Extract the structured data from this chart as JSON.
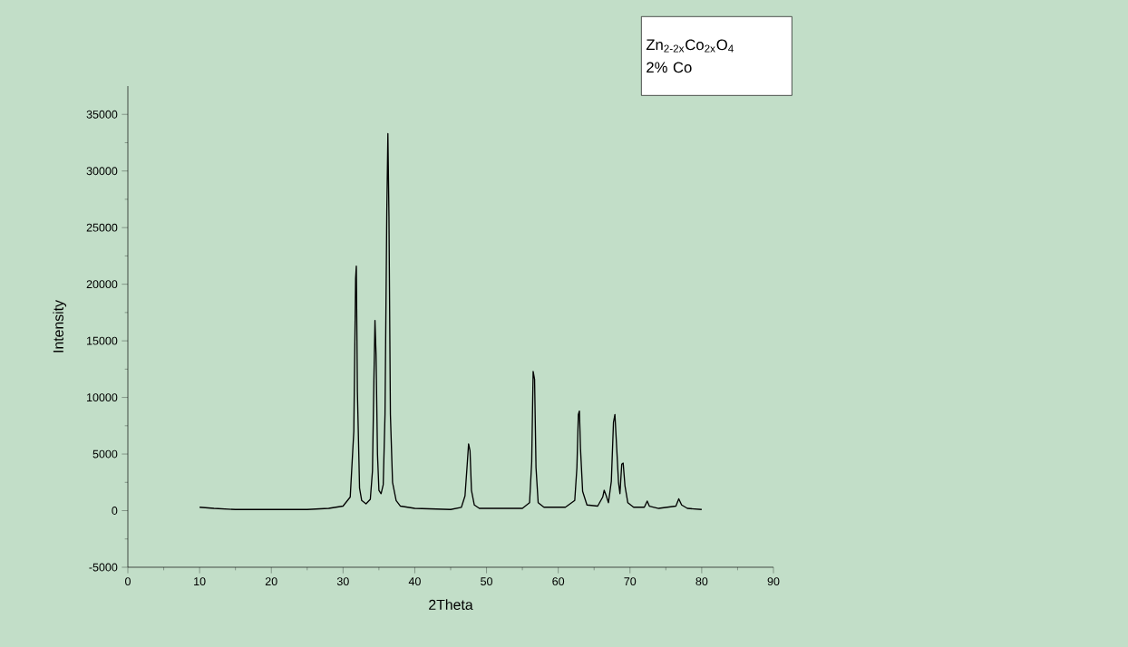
{
  "chart_data": {
    "type": "line",
    "xlabel": "2Theta",
    "ylabel": "Intensity",
    "annotations": [
      "Zn$_{2-2x}$Co$_{2x}$O$_{4}$",
      "2% Co"
    ],
    "xlim": [
      0,
      90
    ],
    "ylim": [
      -5000,
      37500
    ],
    "xticks": [
      0,
      10,
      20,
      30,
      40,
      50,
      60,
      70,
      80,
      90
    ],
    "yticks": [
      -5000,
      0,
      5000,
      10000,
      15000,
      20000,
      25000,
      30000,
      35000
    ],
    "color": "#000000",
    "x": [
      10,
      12,
      15,
      20,
      25,
      28,
      30,
      31,
      31.5,
      31.75,
      31.85,
      32.0,
      32.3,
      32.6,
      33.2,
      33.8,
      34.1,
      34.3,
      34.45,
      34.6,
      34.8,
      35.0,
      35.3,
      35.6,
      35.85,
      36.1,
      36.25,
      36.4,
      36.6,
      36.9,
      37.4,
      38,
      40,
      45,
      46.5,
      47.0,
      47.3,
      47.5,
      47.7,
      47.9,
      48.3,
      49,
      55,
      56.0,
      56.3,
      56.5,
      56.7,
      56.9,
      57.2,
      58,
      61,
      62.3,
      62.6,
      62.8,
      62.95,
      63.1,
      63.4,
      64,
      65.5,
      66.2,
      66.4,
      66.7,
      67.0,
      67.4,
      67.7,
      67.9,
      68.15,
      68.4,
      68.6,
      68.85,
      69.05,
      69.3,
      69.7,
      70.5,
      72,
      72.4,
      72.7,
      74,
      76.4,
      76.8,
      77.2,
      78,
      80
    ],
    "values": [
      300,
      200,
      100,
      100,
      100,
      200,
      400,
      1200,
      7000,
      20500,
      21600,
      10500,
      2000,
      900,
      600,
      1000,
      3500,
      11500,
      16800,
      13800,
      5000,
      1800,
      1500,
      2300,
      8500,
      26500,
      33300,
      26000,
      8500,
      2500,
      900,
      400,
      200,
      100,
      300,
      1300,
      4000,
      5900,
      5300,
      1800,
      500,
      200,
      200,
      700,
      4300,
      12300,
      11600,
      3800,
      700,
      300,
      300,
      900,
      3800,
      8500,
      8800,
      5500,
      1700,
      500,
      400,
      1200,
      1800,
      1300,
      700,
      2600,
      7800,
      8500,
      5500,
      2500,
      1500,
      4100,
      4200,
      2200,
      700,
      300,
      300,
      850,
      400,
      200,
      400,
      1050,
      500,
      200,
      100
    ]
  }
}
